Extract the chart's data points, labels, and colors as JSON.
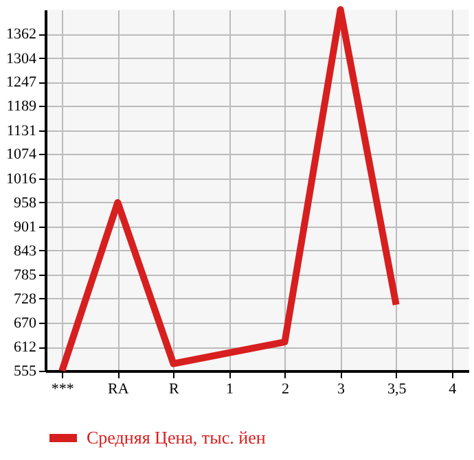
{
  "chart_data": {
    "type": "line",
    "categories": [
      "***",
      "RA",
      "R",
      "1",
      "2",
      "3",
      "3,5",
      "4"
    ],
    "series": [
      {
        "name": "Средняя Цена, тыс. йен",
        "color": "#d71f1f",
        "values": [
          555,
          958,
          572,
          null,
          624,
          1420,
          713,
          null
        ]
      }
    ],
    "ylim": [
      555,
      1420
    ],
    "yticks": [
      555,
      612,
      670,
      728,
      785,
      843,
      901,
      958,
      1016,
      1074,
      1131,
      1189,
      1247,
      1304,
      1362
    ],
    "grid": true,
    "legend": "bottom",
    "marker": "none",
    "line_style": "solid"
  }
}
